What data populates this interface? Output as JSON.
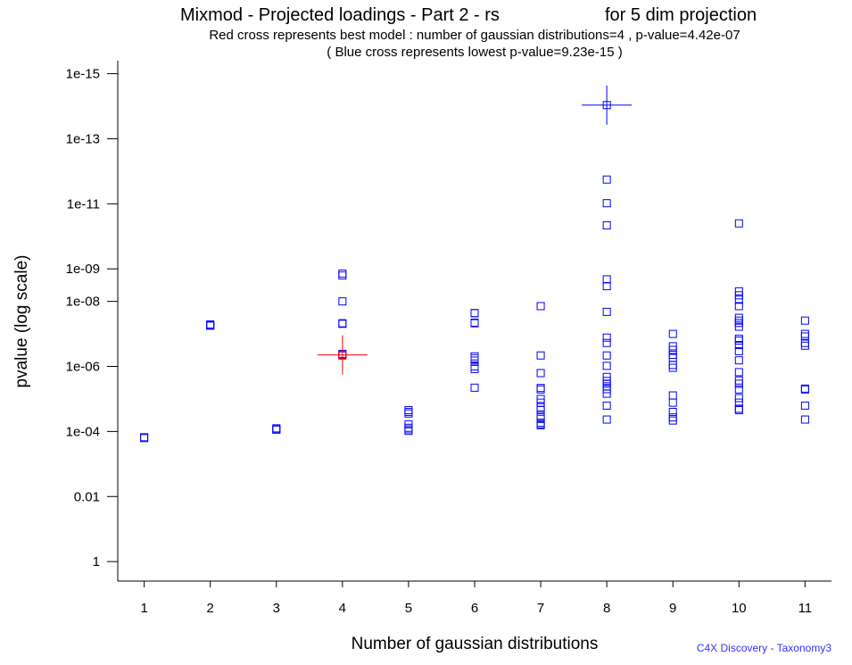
{
  "title_left": "Mixmod - Projected loadings - Part 2 - rs",
  "title_right": "for 5 dim projection",
  "subtitle1": "Red cross represents best model : number of gaussian distributions=4 , p-value=4.42e-07",
  "subtitle2": "( Blue cross represents lowest p-value=9.23e-15 )",
  "footer": "C4X Discovery - Taxonomy3",
  "chart_data": {
    "type": "scatter",
    "xlabel": "Number of gaussian distributions",
    "ylabel": "pvalue (log scale)",
    "xlim": [
      0.6,
      11.4
    ],
    "ylim_log10": [
      0.6,
      -15.4
    ],
    "y_scale": "log",
    "y_inverted": true,
    "x_ticks": [
      1,
      2,
      3,
      4,
      5,
      6,
      7,
      8,
      9,
      10,
      11
    ],
    "y_ticks": [
      {
        "label": "1e-15",
        "log10": -15
      },
      {
        "label": "1e-13",
        "log10": -13
      },
      {
        "label": "1e-11",
        "log10": -11
      },
      {
        "label": "1e-09",
        "log10": -9
      },
      {
        "label": "1e-08",
        "log10": -8
      },
      {
        "label": "1e-06",
        "log10": -6
      },
      {
        "label": "1e-04",
        "log10": -4
      },
      {
        "label": "0.01",
        "log10": -2
      },
      {
        "label": "1",
        "log10": 0
      }
    ],
    "point_color": "#0000ff",
    "best_color": "#ff0000",
    "lowest_color": "#0000ff",
    "best_model": {
      "x": 4,
      "p": 4.42e-07
    },
    "lowest_pvalue": {
      "x": 8,
      "p": 9.23e-15
    },
    "points": [
      {
        "x": 1,
        "p": [
          0.00016,
          0.00015
        ]
      },
      {
        "x": 2,
        "p": [
          5.4e-08,
          5.6e-08,
          5.1e-08
        ]
      },
      {
        "x": 3,
        "p": [
          8.6e-05,
          8e-05,
          8.8e-05
        ]
      },
      {
        "x": 4,
        "p": [
          1.4e-09,
          1.6e-09,
          1e-08,
          4.7e-08,
          4.9e-08,
          4.1e-07,
          4.4e-07,
          4.6e-07
        ]
      },
      {
        "x": 5,
        "p": [
          2.2e-05,
          2.5e-05,
          2.8e-05,
          6e-05,
          7.7e-05,
          8.6e-05,
          9.6e-05
        ]
      },
      {
        "x": 6,
        "p": [
          2.3e-08,
          2.3e-08,
          4.5e-08,
          4.7e-08,
          4.9e-07,
          5.6e-07,
          6.6e-07,
          1e-06,
          1.2e-06,
          4.5e-06
        ]
      },
      {
        "x": 7,
        "p": [
          1.4e-08,
          4.6e-07,
          1.6e-06,
          4.6e-06,
          5.1e-06,
          1e-05,
          1.3e-05,
          1.8e-05,
          2.2e-05,
          3.3e-05,
          4.1e-05,
          5.4e-05,
          6e-05,
          6.4e-05
        ]
      },
      {
        "x": 8,
        "p": [
          1.8e-12,
          9.6e-12,
          4.6e-11,
          2.1e-09,
          3.4e-09,
          2.1e-08,
          1.3e-07,
          1.9e-07,
          4.6e-07,
          9.6e-07,
          2.1e-06,
          2.8e-06,
          3.4e-06,
          4.1e-06,
          5e-06,
          6.9e-06,
          1.6e-05,
          4.3e-05
        ]
      },
      {
        "x": 9,
        "p": [
          1e-07,
          2.4e-07,
          3.1e-07,
          4.4e-07,
          5.5e-07,
          9e-07,
          1.1e-06,
          7.8e-06,
          1.3e-05,
          2.5e-05,
          3.7e-05,
          4.6e-05
        ]
      },
      {
        "x": 10,
        "p": [
          4e-11,
          4.9e-09,
          6.5e-09,
          8.9e-09,
          1.4e-08,
          3.2e-08,
          3.9e-08,
          4.6e-08,
          6e-08,
          1.4e-07,
          1.6e-07,
          2.2e-07,
          3.4e-07,
          6.5e-07,
          1.5e-06,
          2.7e-06,
          3.4e-06,
          5.1e-06,
          9.4e-06,
          1.3e-05,
          2e-05,
          2.2e-05
        ]
      },
      {
        "x": 11,
        "p": [
          3.9e-08,
          1e-07,
          1.2e-07,
          1.9e-07,
          2.3e-07,
          4.8e-06,
          5.1e-06,
          1.6e-05,
          4.3e-05
        ]
      }
    ]
  }
}
